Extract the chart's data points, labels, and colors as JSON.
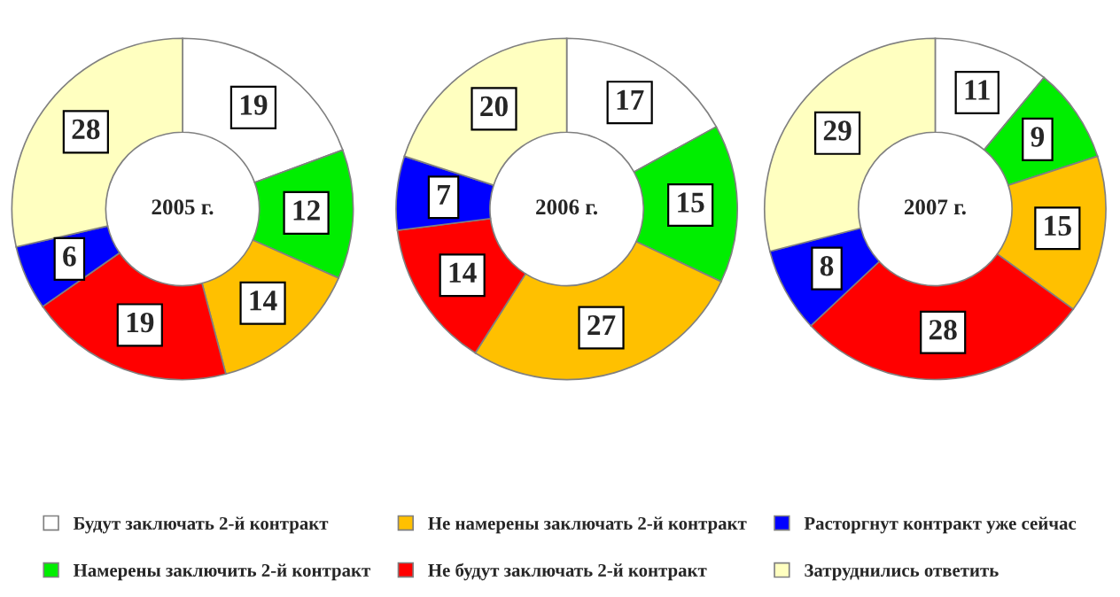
{
  "chart_data": [
    {
      "type": "donut",
      "title": "2005 г.",
      "categories": [
        "Будут заключать 2-й контракт",
        "Намерены заключить 2-й контракт",
        "Не намерены заключать 2-й контракт",
        "Не будут заключать 2-й контракт",
        "Расторгнут контракт уже сейчас",
        "Затруднились ответить"
      ],
      "values": [
        19,
        12,
        14,
        19,
        6,
        28
      ],
      "colors": [
        "#ffffff",
        "#00ee00",
        "#ffc000",
        "#ff0000",
        "#0000ff",
        "#ffffc0"
      ],
      "data_labels": true,
      "legend": "bottom"
    },
    {
      "type": "donut",
      "title": "2006 г.",
      "categories": [
        null,
        null,
        null,
        null,
        null,
        null
      ],
      "values": [
        17,
        15,
        27,
        14,
        7,
        20
      ],
      "colors": [
        "#ffffff",
        "#00ee00",
        "#ffc000",
        "#ff0000",
        "#0000ff",
        "#ffffc0"
      ],
      "data_labels": true
    },
    {
      "type": "donut",
      "title": "2007 г.",
      "categories": [
        null,
        null,
        null,
        null,
        null,
        null
      ],
      "values": [
        11,
        9,
        15,
        28,
        8,
        29
      ],
      "colors": [
        "#ffffff",
        "#00ee00",
        "#ffc000",
        "#ff0000",
        "#0000ff",
        "#ffffc0"
      ],
      "data_labels": true
    }
  ]
}
